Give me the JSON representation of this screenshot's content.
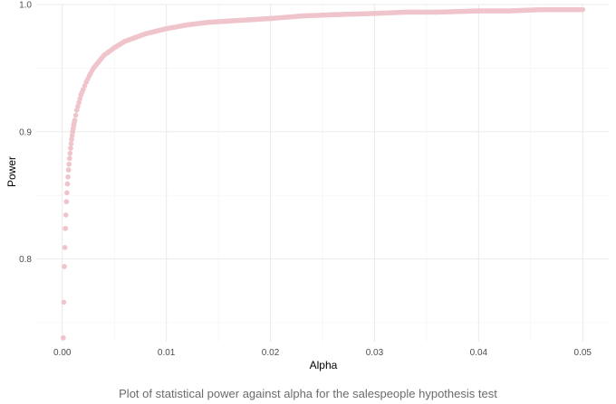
{
  "caption": "Plot of statistical power against alpha for the salespeople hypothesis test",
  "chart_data": {
    "type": "scatter",
    "title": "",
    "xlabel": "Alpha",
    "ylabel": "Power",
    "xlim": [
      -0.0025,
      0.0525
    ],
    "ylim": [
      0.735,
      1.0
    ],
    "x_ticks": [
      0.0,
      0.01,
      0.02,
      0.03,
      0.04,
      0.05
    ],
    "x_tick_labels": [
      "0.00",
      "0.01",
      "0.02",
      "0.03",
      "0.04",
      "0.05"
    ],
    "y_ticks": [
      0.8,
      0.9,
      1.0
    ],
    "y_tick_labels": [
      "0.8",
      "0.9",
      "1.0"
    ],
    "grid": true,
    "point_color": "#f0c4cb",
    "series": [
      {
        "x": [
          0.0001,
          0.0002,
          0.0003,
          0.0004,
          0.0005,
          0.0006,
          0.0007,
          0.0008,
          0.0009,
          0.001,
          0.0011,
          0.0012,
          0.0014,
          0.0016,
          0.0018,
          0.002,
          0.0023,
          0.0026,
          0.003,
          0.0035,
          0.004,
          0.0045,
          0.005,
          0.006,
          0.007,
          0.008,
          0.009,
          0.01,
          0.012,
          0.014,
          0.016,
          0.018,
          0.02,
          0.023,
          0.026,
          0.03,
          0.033,
          0.036,
          0.04,
          0.043,
          0.046,
          0.05
        ],
        "y": [
          0.738,
          0.794,
          0.824,
          0.845,
          0.859,
          0.87,
          0.879,
          0.887,
          0.894,
          0.9,
          0.905,
          0.909,
          0.917,
          0.923,
          0.929,
          0.933,
          0.939,
          0.944,
          0.95,
          0.955,
          0.96,
          0.963,
          0.966,
          0.971,
          0.974,
          0.977,
          0.979,
          0.981,
          0.984,
          0.986,
          0.987,
          0.988,
          0.989,
          0.991,
          0.992,
          0.993,
          0.994,
          0.994,
          0.995,
          0.995,
          0.996,
          0.996
        ]
      }
    ]
  }
}
